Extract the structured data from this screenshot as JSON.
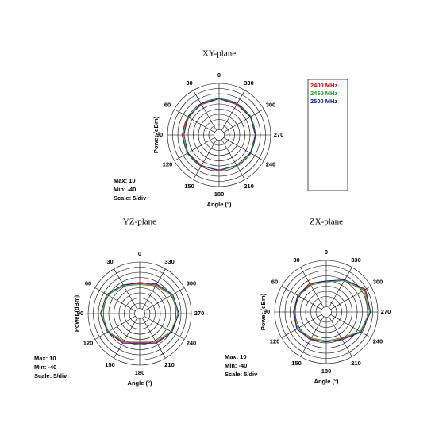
{
  "chart_data": [
    {
      "type": "polar",
      "title": "XY-plane",
      "r_label": "Power (dBm)",
      "theta_label": "Angle (°)",
      "annotations": [
        "Max: 10",
        "Min: -40",
        "Scale: 5/div"
      ],
      "rlim": [
        -40,
        10
      ],
      "rticks": [
        -40,
        -35,
        -30,
        -25,
        -20,
        -15,
        -10,
        -5,
        0,
        5,
        10
      ],
      "theta": [
        0,
        30,
        60,
        90,
        120,
        150,
        180,
        210,
        240,
        270,
        300,
        330
      ],
      "thetaticks": [
        0,
        30,
        60,
        90,
        120,
        150,
        180,
        210,
        240,
        270,
        300,
        330
      ],
      "legend": "right",
      "series": [
        {
          "name": "2400 MHz",
          "color": "#e00000",
          "values": [
            -5,
            -6,
            -5,
            -4,
            -5,
            -6,
            -5,
            -6,
            -5,
            -4,
            -5,
            -6
          ]
        },
        {
          "name": "2450 MHz",
          "color": "#20a020",
          "values": [
            -4,
            -5,
            -6,
            -5,
            -4,
            -5,
            -6,
            -5,
            -4,
            -5,
            -4,
            -5
          ]
        },
        {
          "name": "2500 MHz",
          "color": "#1020a0",
          "values": [
            -5,
            -5,
            -5,
            -6,
            -5,
            -5,
            -6,
            -6,
            -5,
            -5,
            -5,
            -5
          ]
        }
      ]
    },
    {
      "type": "polar",
      "title": "YZ-plane",
      "r_label": "Power (dBm)",
      "theta_label": "Angle (°)",
      "annotations": [
        "Max: 10",
        "Min: -40",
        "Scale: 5/div"
      ],
      "rlim": [
        -40,
        10
      ],
      "rticks": [
        -40,
        -35,
        -30,
        -25,
        -20,
        -15,
        -10,
        -5,
        0,
        5,
        10
      ],
      "theta": [
        0,
        30,
        60,
        90,
        120,
        150,
        180,
        210,
        240,
        270,
        300,
        330
      ],
      "thetaticks": [
        0,
        30,
        60,
        90,
        120,
        150,
        180,
        210,
        240,
        270,
        300,
        330
      ],
      "series": [
        {
          "color": "#e00000",
          "values": [
            -11,
            -8,
            -3,
            -2,
            -4,
            -8,
            -12,
            -8,
            -4,
            -2,
            -3,
            -8
          ]
        },
        {
          "color": "#20a020",
          "values": [
            -12,
            -9,
            -4,
            -3,
            -5,
            -9,
            -13,
            -9,
            -5,
            -3,
            -4,
            -9
          ]
        },
        {
          "color": "#1020a0",
          "values": [
            -10,
            -8,
            -3,
            -2,
            -4,
            -7,
            -11,
            -7,
            -4,
            -2,
            -3,
            -7
          ]
        }
      ]
    },
    {
      "type": "polar",
      "title": "ZX-plane",
      "r_label": "Power (dBm)",
      "theta_label": "Angle (°)",
      "annotations": [
        "Max: 10",
        "Min: -40",
        "Scale: 5/div"
      ],
      "rlim": [
        -40,
        10
      ],
      "rticks": [
        -40,
        -35,
        -30,
        -25,
        -20,
        -15,
        -10,
        -5,
        0,
        5,
        10
      ],
      "theta": [
        0,
        30,
        60,
        90,
        120,
        150,
        180,
        210,
        240,
        270,
        300,
        330
      ],
      "thetaticks": [
        0,
        30,
        60,
        90,
        120,
        150,
        180,
        210,
        240,
        270,
        300,
        330
      ],
      "series": [
        {
          "color": "#e00000",
          "values": [
            -10,
            -9,
            -8,
            -8,
            -7,
            -10,
            -11,
            -10,
            -1,
            3,
            3,
            -4
          ]
        },
        {
          "color": "#20a020",
          "values": [
            -11,
            -10,
            -9,
            -8,
            -8,
            -11,
            -12,
            -11,
            -2,
            2,
            2,
            -5
          ]
        },
        {
          "color": "#1020a0",
          "values": [
            -10,
            -8,
            -8,
            -9,
            -7,
            -9,
            -11,
            -9,
            -1,
            3,
            4,
            -4
          ]
        }
      ]
    }
  ]
}
